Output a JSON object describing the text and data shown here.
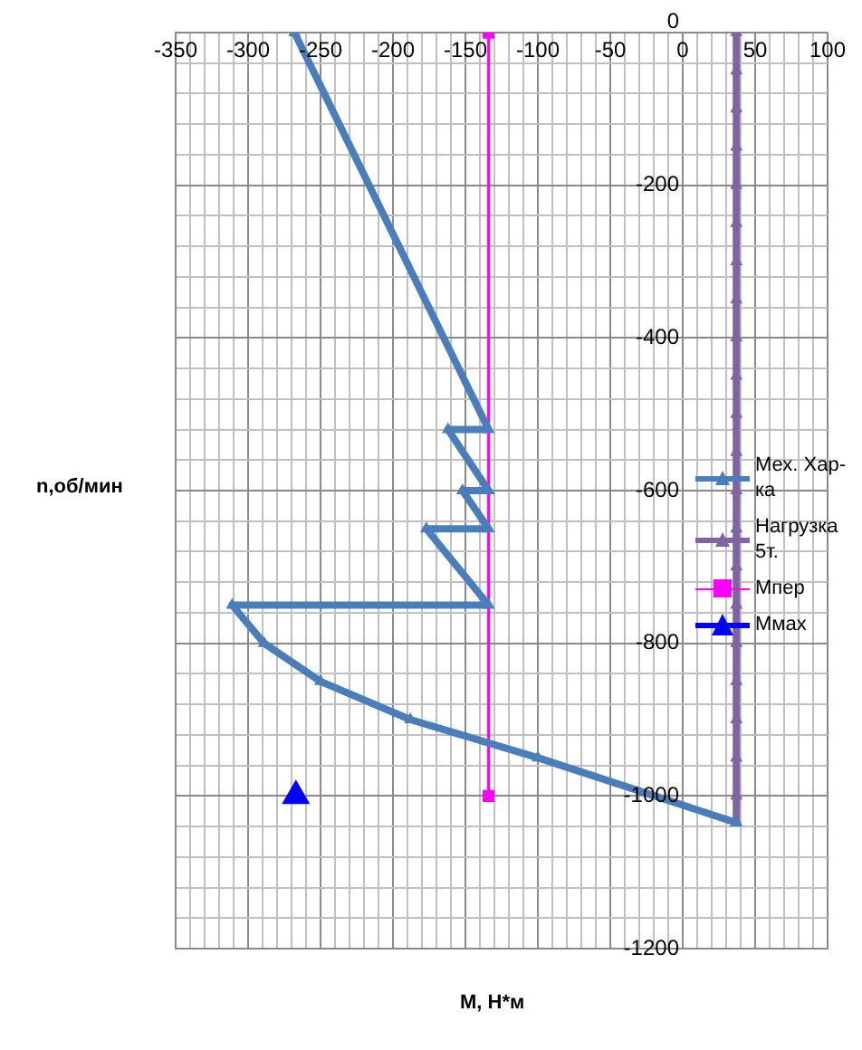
{
  "chart_data": {
    "type": "line",
    "xlabel": "М, Н*м",
    "ylabel": "n,об/мин",
    "xlim": [
      -350,
      100
    ],
    "xticks": [
      -350,
      -300,
      -250,
      -200,
      -150,
      -100,
      -50,
      0,
      50,
      100
    ],
    "ylim": [
      -1200,
      0
    ],
    "yticks": [
      -1200,
      -1000,
      -800,
      -600,
      -400,
      -200,
      0
    ],
    "grid": true,
    "legend": "right",
    "marker": "triangle",
    "series": [
      {
        "name": "Мех. Хар-ка",
        "color": "#4a7ebb",
        "x": [
          -268,
          -134,
          -162,
          -134,
          -152,
          -134,
          -177,
          -134,
          -311,
          -289,
          -250,
          -188,
          -100,
          37
        ],
        "values": [
          0,
          -520,
          -520,
          -600,
          -600,
          -650,
          -650,
          -750,
          -750,
          -800,
          -850,
          -900,
          -950,
          -1035
        ]
      },
      {
        "name": "Нагрузка 5т.",
        "color": "#8064a2",
        "x": [
          37,
          37,
          37,
          37,
          37,
          37,
          37,
          37,
          37,
          37,
          37,
          37,
          37,
          37,
          37,
          37,
          37,
          37,
          37,
          37,
          37,
          37
        ],
        "values": [
          0,
          -50,
          -100,
          -150,
          -200,
          -250,
          -300,
          -350,
          -400,
          -450,
          -500,
          -550,
          -600,
          -650,
          -700,
          -750,
          -800,
          -850,
          -900,
          -950,
          -1000,
          -1035
        ]
      },
      {
        "name": "Мпер",
        "color": "#ff00ff",
        "marker": "square",
        "x": [
          -134,
          -134
        ],
        "values": [
          0,
          -1000
        ]
      },
      {
        "name": "Ммах",
        "color": "#0000ff",
        "x": [
          -267
        ],
        "values": [
          -1000
        ]
      }
    ]
  }
}
